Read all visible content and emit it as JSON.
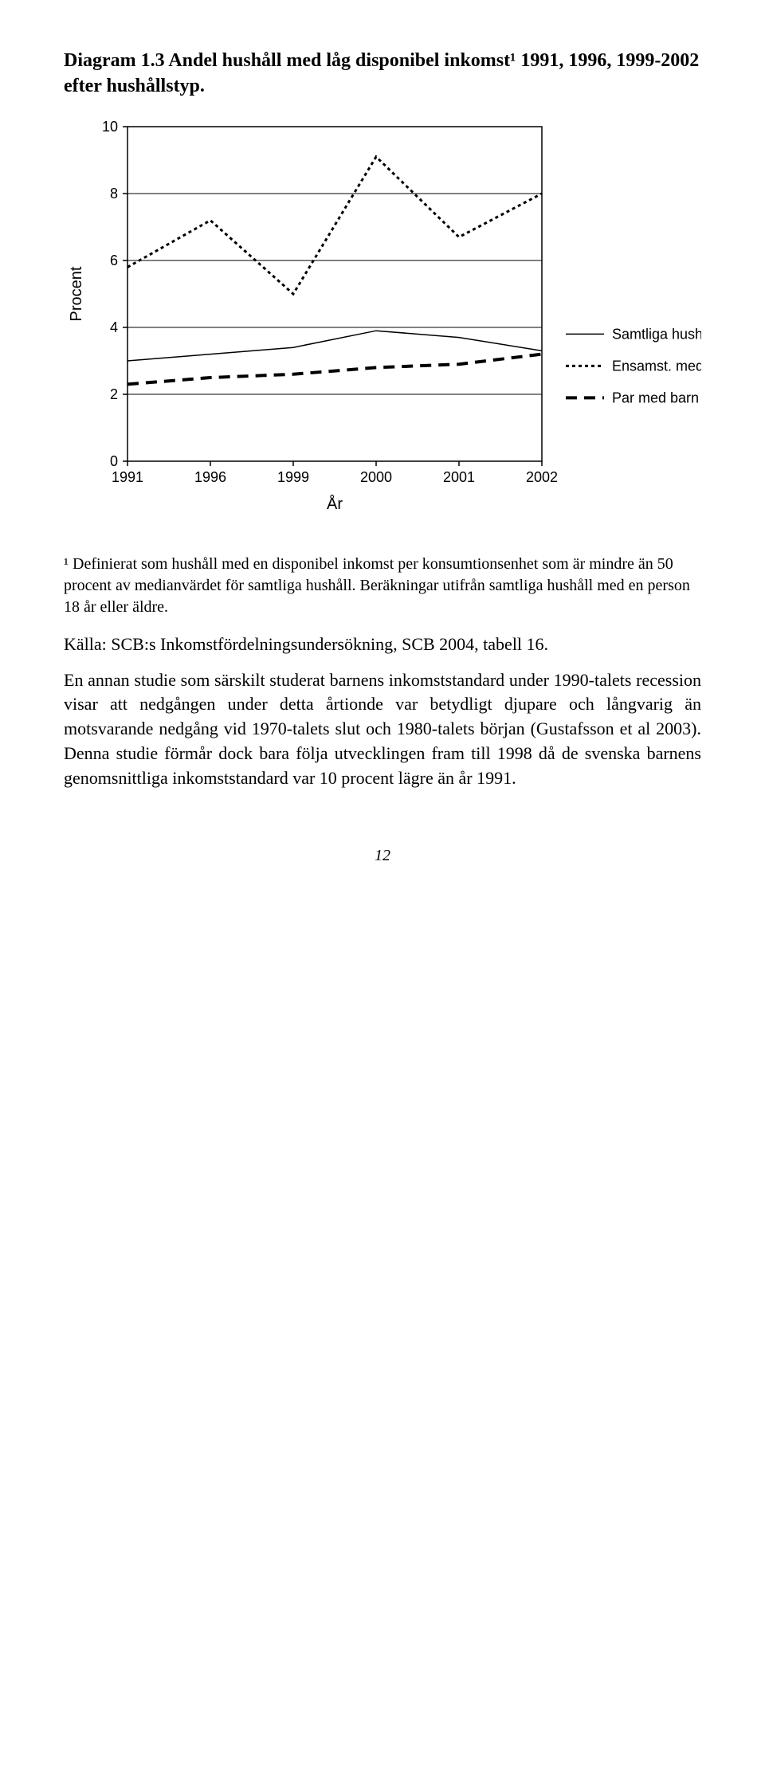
{
  "title": "Diagram 1.3 Andel hushåll med låg disponibel inkomst¹ 1991, 1996, 1999-2002 efter hushållstyp.",
  "chart": {
    "type": "line",
    "ylabel": "Procent",
    "xlabel": "År",
    "ylim": [
      0,
      10
    ],
    "yticks": [
      0,
      2,
      4,
      6,
      8,
      10
    ],
    "x_categories": [
      "1991",
      "1996",
      "1999",
      "2000",
      "2001",
      "2002"
    ],
    "plot_bg": "#ffffff",
    "axis_color": "#000000",
    "grid_color": "#000000",
    "grid_width": 1,
    "series": [
      {
        "name": "Samtliga hushåll",
        "values": [
          3.0,
          3.2,
          3.4,
          3.9,
          3.7,
          3.3
        ],
        "color": "#000000",
        "width": 1.5,
        "dash": "none"
      },
      {
        "name": "Ensamst. med barn",
        "values": [
          5.8,
          7.2,
          5.0,
          9.1,
          6.7,
          8.0
        ],
        "color": "#000000",
        "width": 3,
        "dash": "4,4"
      },
      {
        "name": "Par med barn",
        "values": [
          2.3,
          2.5,
          2.6,
          2.8,
          2.9,
          3.2
        ],
        "color": "#000000",
        "width": 4,
        "dash": "14,9"
      }
    ],
    "legend": [
      "Samtliga hushåll",
      "Ensamst. med barn",
      "Par med barn"
    ]
  },
  "footnote": "¹ Definierat som hushåll med en disponibel inkomst per konsumtionsenhet som är mindre än 50 procent av medianvärdet för samtliga hushåll. Beräkningar utifrån samtliga hushåll med en person 18 år eller äldre.",
  "source": "Källa: SCB:s Inkomstfördelningsundersökning, SCB 2004, tabell 16.",
  "paragraph": "En annan studie som särskilt studerat barnens inkomststandard under 1990-talets recession visar att nedgången under detta årtionde var betydligt djupare och långvarig än motsvarande nedgång vid 1970-talets slut och 1980-talets början (Gustafsson et al 2003). Denna studie förmår dock bara följa utvecklingen fram till 1998 då de svenska barnens genomsnittliga inkomststandard var 10 procent lägre än år 1991.",
  "page_number": "12"
}
